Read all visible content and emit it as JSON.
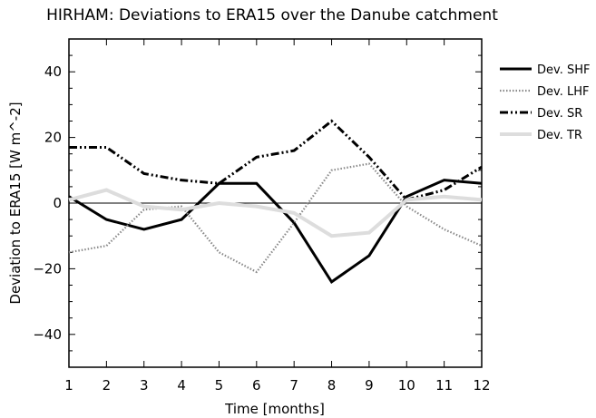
{
  "chart_data": {
    "type": "line",
    "title": "HIRHAM: Deviations to ERA15 over the Danube catchment",
    "xlabel": "Time [months]",
    "ylabel": "Deviation to ERA15 [W m^-2]",
    "x": [
      1,
      2,
      3,
      4,
      5,
      6,
      7,
      8,
      9,
      10,
      11,
      12
    ],
    "xlim": [
      1,
      12
    ],
    "ylim": [
      -50,
      50
    ],
    "xticks": [
      1,
      2,
      3,
      4,
      5,
      6,
      7,
      8,
      9,
      10,
      11,
      12
    ],
    "yticks": [
      -40,
      -20,
      0,
      20,
      40
    ],
    "grid": false,
    "zero_line": true,
    "legend_position": "right",
    "series": [
      {
        "name": "Dev. SHF",
        "style": "solid",
        "color": "#000000",
        "values": [
          2,
          -5,
          -8,
          -5,
          6,
          6,
          -6,
          -24,
          -16,
          2,
          7,
          6
        ]
      },
      {
        "name": "Dev. LHF",
        "style": "dotted",
        "color": "#888888",
        "values": [
          -15,
          -13,
          -2,
          -1,
          -15,
          -21,
          -6,
          10,
          12,
          -1,
          -8,
          -13
        ]
      },
      {
        "name": "Dev. SR",
        "style": "dash-dot-dot",
        "color": "#000000",
        "values": [
          17,
          17,
          9,
          7,
          6,
          14,
          16,
          25,
          14,
          1,
          4,
          11
        ]
      },
      {
        "name": "Dev. TR",
        "style": "solid-thick",
        "color": "#dddddd",
        "values": [
          1,
          4,
          -1,
          -2,
          0,
          -1,
          -3,
          -10,
          -9,
          1,
          2,
          1
        ]
      }
    ]
  }
}
